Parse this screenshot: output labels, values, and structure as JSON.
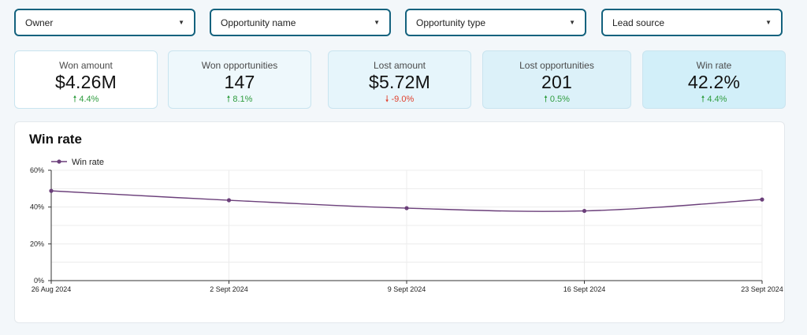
{
  "filters": [
    {
      "label": "Owner"
    },
    {
      "label": "Opportunity name"
    },
    {
      "label": "Opportunity type"
    },
    {
      "label": "Lead source"
    }
  ],
  "kpis": [
    {
      "label": "Won amount",
      "value": "$4.26M",
      "delta": "4.4%",
      "direction": "up"
    },
    {
      "label": "Won opportunities",
      "value": "147",
      "delta": "8.1%",
      "direction": "up"
    },
    {
      "label": "Lost amount",
      "value": "$5.72M",
      "delta": "-9.0%",
      "direction": "down"
    },
    {
      "label": "Lost opportunities",
      "value": "201",
      "delta": "0.5%",
      "direction": "up"
    },
    {
      "label": "Win rate",
      "value": "42.2%",
      "delta": "4.4%",
      "direction": "up"
    }
  ],
  "colors": {
    "accent": "#14627e",
    "series": "#6b3f7a",
    "up": "#2e9c3e",
    "down": "#e0412e"
  },
  "chart_data": {
    "type": "line",
    "title": "Win rate",
    "legend": "top-left",
    "series": [
      {
        "name": "Win rate",
        "values": [
          48.8,
          43.7,
          39.4,
          37.9,
          44.1
        ]
      }
    ],
    "categories": [
      "26 Aug 2024",
      "2 Sept 2024",
      "9 Sept 2024",
      "16 Sept 2024",
      "23 Sept 2024"
    ],
    "y_ticks": [
      "0%",
      "20%",
      "40%",
      "60%"
    ],
    "ylim": [
      0,
      60
    ],
    "grid": true,
    "xlabel": "",
    "ylabel": ""
  }
}
